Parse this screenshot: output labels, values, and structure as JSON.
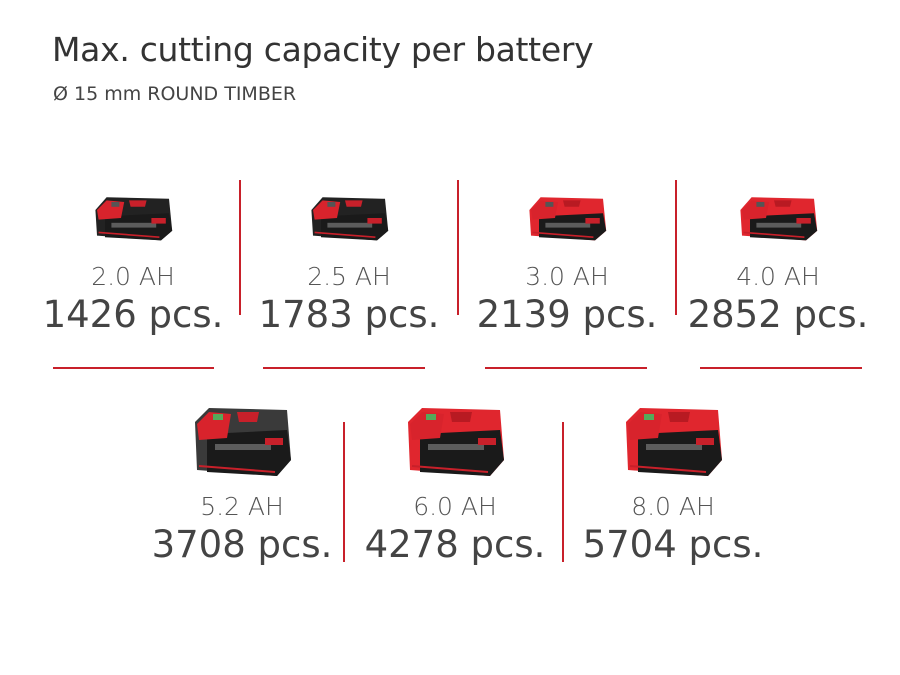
{
  "title": "Max. cutting capacity per battery",
  "subtitle": "Ø 15 mm ROUND TIMBER",
  "accent_color": "#c8202a",
  "batteries": [
    {
      "capacity": "2.0 AH",
      "pieces": "1426 pcs.",
      "style": "black-small"
    },
    {
      "capacity": "2.5 AH",
      "pieces": "1783 pcs.",
      "style": "black-small"
    },
    {
      "capacity": "3.0 AH",
      "pieces": "2139 pcs.",
      "style": "red-small"
    },
    {
      "capacity": "4.0 AH",
      "pieces": "2852 pcs.",
      "style": "red-small"
    },
    {
      "capacity": "5.2 AH",
      "pieces": "3708 pcs.",
      "style": "black-large"
    },
    {
      "capacity": "6.0 AH",
      "pieces": "4278 pcs.",
      "style": "red-large"
    },
    {
      "capacity": "8.0 AH",
      "pieces": "5704 pcs.",
      "style": "red-large"
    }
  ]
}
